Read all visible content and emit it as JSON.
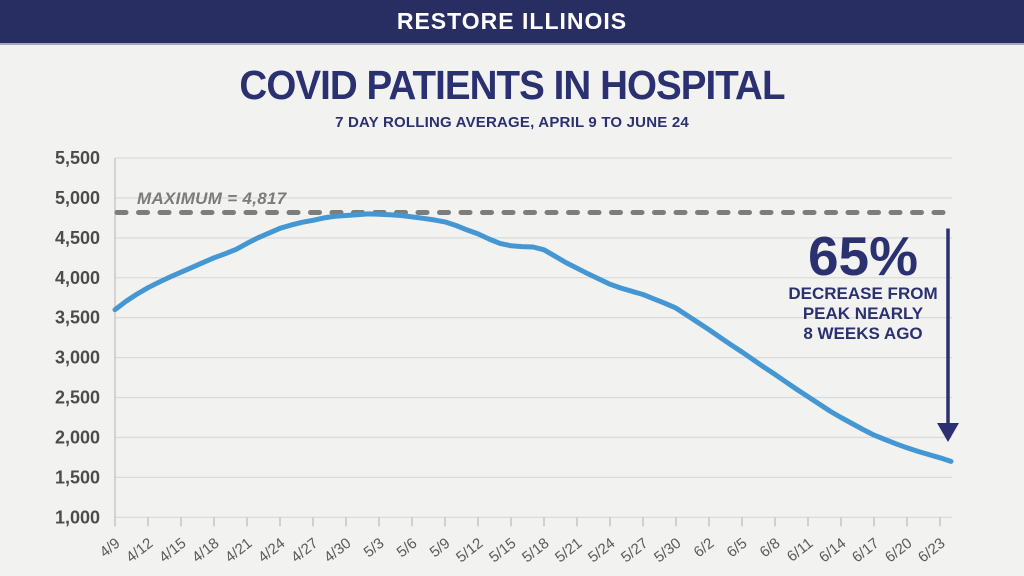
{
  "header": {
    "title": "RESTORE ILLINOIS"
  },
  "title": "COVID PATIENTS IN HOSPITAL",
  "subtitle": "7 DAY ROLLING AVERAGE, APRIL 9 TO JUNE 24",
  "max_line_label": "MAXIMUM = 4,817",
  "annotation": {
    "percent": "65%",
    "line1": "DECREASE FROM",
    "line2": "PEAK NEARLY",
    "line3": "8 WEEKS AGO"
  },
  "colors": {
    "header_bg": "#292e62",
    "header_text": "#ffffff",
    "navy_accent": "#2b3170",
    "line_blue": "#4597d4",
    "dashed_gray": "#7d7d7b",
    "grid_gray": "#dbdbd9",
    "axis_gray": "#c2c2c0",
    "y_label_gray": "#4c4c4c",
    "x_label_gray": "#5a5a5a",
    "background": "#f2f2f0"
  },
  "chart_data": {
    "type": "line",
    "title": "COVID PATIENTS IN HOSPITAL",
    "subtitle": "7 DAY ROLLING AVERAGE, APRIL 9 TO JUNE 24",
    "x_start_date": "4/9",
    "x_end_date": "6/24",
    "x_tick_labels": [
      "4/9",
      "4/12",
      "4/15",
      "4/18",
      "4/21",
      "4/24",
      "4/27",
      "4/30",
      "5/3",
      "5/6",
      "5/9",
      "5/12",
      "5/15",
      "5/18",
      "5/21",
      "5/24",
      "5/27",
      "5/30",
      "6/2",
      "6/5",
      "6/8",
      "6/11",
      "6/14",
      "6/17",
      "6/20",
      "6/23"
    ],
    "x_tick_interval_days": 3,
    "ylim": [
      1000,
      5500
    ],
    "y_ticks": [
      1000,
      1500,
      2000,
      2500,
      3000,
      3500,
      4000,
      4500,
      5000,
      5500
    ],
    "y_tick_labels": [
      "1,000",
      "1,500",
      "2,000",
      "2,500",
      "3,000",
      "3,500",
      "4,000",
      "4,500",
      "5,000",
      "5,500"
    ],
    "grid": true,
    "max_line_value": 4817,
    "legend": "none",
    "series": [
      {
        "name": "7 day rolling average of COVID patients in hospital",
        "values": [
          3600,
          3705,
          3795,
          3875,
          3945,
          4010,
          4070,
          4130,
          4190,
          4250,
          4300,
          4355,
          4430,
          4500,
          4560,
          4620,
          4660,
          4695,
          4720,
          4750,
          4770,
          4780,
          4790,
          4800,
          4795,
          4790,
          4780,
          4762,
          4745,
          4725,
          4700,
          4655,
          4600,
          4550,
          4485,
          4430,
          4400,
          4390,
          4385,
          4350,
          4270,
          4190,
          4120,
          4050,
          3985,
          3920,
          3870,
          3830,
          3790,
          3735,
          3680,
          3620,
          3530,
          3440,
          3350,
          3255,
          3160,
          3070,
          2975,
          2880,
          2790,
          2695,
          2600,
          2510,
          2420,
          2330,
          2250,
          2175,
          2100,
          2030,
          1975,
          1920,
          1870,
          1825,
          1785,
          1745,
          1700
        ]
      }
    ]
  }
}
